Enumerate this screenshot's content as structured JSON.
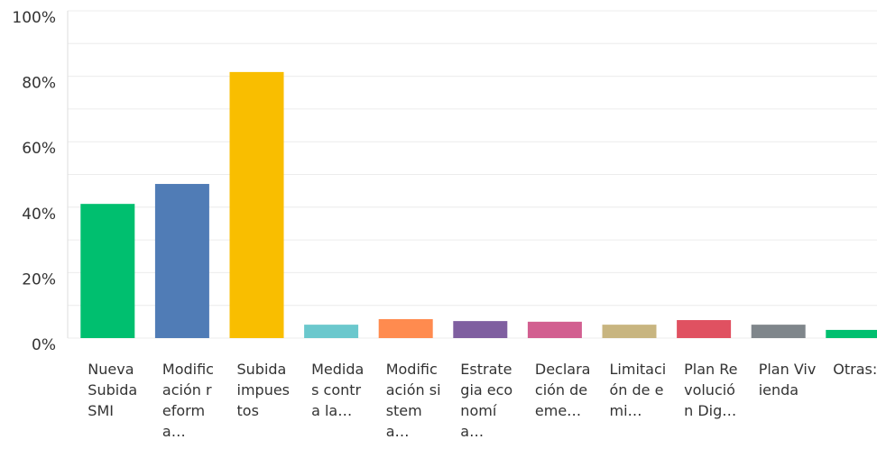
{
  "chart_data": {
    "type": "bar",
    "categories": [
      "Nueva Subida SMI",
      "Modificación reforma…",
      "Subida impuestos",
      "Medidas contra la…",
      "Modificación sistema…",
      "Estrategia economía…",
      "Declaración de eme…",
      "Limitación de emi…",
      "Plan Revolución Dig…",
      "Plan Vivienda",
      "Otras:"
    ],
    "values": [
      41.0,
      47.1,
      81.3,
      4.1,
      5.8,
      5.2,
      5.0,
      4.1,
      5.5,
      4.1,
      2.5
    ],
    "colors": [
      "#00bf6f",
      "#507cb6",
      "#f9be00",
      "#6bc8cd",
      "#ff8b4f",
      "#7f5fa0",
      "#d25f90",
      "#c8b580",
      "#e05161",
      "#7f868b",
      "#00bf6f"
    ],
    "ylim": [
      0,
      100
    ],
    "yticks": [
      {
        "value": 0,
        "label": "0%"
      },
      {
        "value": 20,
        "label": "20%"
      },
      {
        "value": 40,
        "label": "40%"
      },
      {
        "value": 60,
        "label": "60%"
      },
      {
        "value": 80,
        "label": "80%"
      },
      {
        "value": 100,
        "label": "100%"
      }
    ],
    "grid": true
  }
}
